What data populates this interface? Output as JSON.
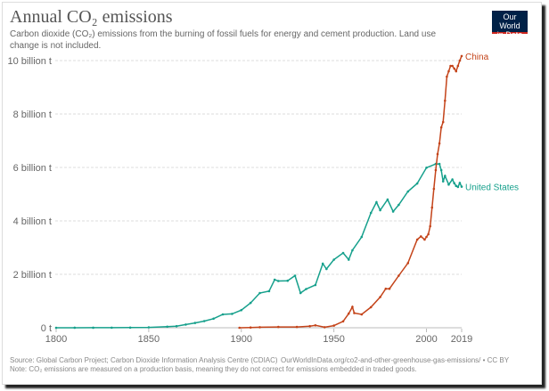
{
  "title": "Annual CO₂ emissions",
  "subtitle": "Carbon dioxide (CO₂) emissions from the burning of fossil fuels for energy and cement production. Land use change is not included.",
  "logo": {
    "line1": "Our World",
    "line2": "in Data"
  },
  "footer": {
    "source": "Source: Global Carbon Project; Carbon Dioxide Information Analysis Centre (CDIAC)",
    "url": "OurWorldInData.org/co2-and-other-greenhouse-gas-emissions/ • CC BY",
    "note": "Note: CO₂ emissions are measured on a production basis, meaning they do not correct for emissions embedded in traded goods."
  },
  "chart_data": {
    "type": "line",
    "xlim": [
      1800,
      2019
    ],
    "ylim": [
      0,
      10
    ],
    "x_ticks": [
      "1800",
      "1850",
      "1900",
      "1950",
      "2000",
      "2019"
    ],
    "y_ticks": [
      "0 t",
      "2 billion t",
      "4 billion t",
      "6 billion t",
      "8 billion t",
      "10 billion t"
    ],
    "y_tick_values": [
      0,
      2,
      4,
      6,
      8,
      10
    ],
    "x_tick_values": [
      1800,
      1850,
      1900,
      1950,
      2000,
      2019
    ],
    "grid": "horizontal dashed",
    "unit": "billion t",
    "series": [
      {
        "name": "United States",
        "color": "#16a08c",
        "x": [
          1800,
          1810,
          1820,
          1830,
          1840,
          1850,
          1860,
          1865,
          1870,
          1875,
          1880,
          1885,
          1890,
          1895,
          1900,
          1905,
          1910,
          1915,
          1918,
          1920,
          1925,
          1929,
          1932,
          1935,
          1940,
          1944,
          1946,
          1950,
          1955,
          1958,
          1960,
          1965,
          1970,
          1973,
          1975,
          1979,
          1982,
          1985,
          1990,
          1995,
          2000,
          2005,
          2007,
          2008,
          2009,
          2010,
          2012,
          2014,
          2015,
          2016,
          2017,
          2018,
          2019
        ],
        "y": [
          0.0003,
          0.001,
          0.002,
          0.004,
          0.006,
          0.015,
          0.04,
          0.06,
          0.12,
          0.18,
          0.25,
          0.34,
          0.5,
          0.52,
          0.66,
          0.93,
          1.3,
          1.37,
          1.8,
          1.75,
          1.76,
          1.95,
          1.3,
          1.45,
          1.6,
          2.4,
          2.2,
          2.55,
          2.8,
          2.55,
          2.9,
          3.4,
          4.3,
          4.7,
          4.4,
          4.8,
          4.35,
          4.6,
          5.1,
          5.4,
          5.99,
          6.13,
          6.13,
          5.9,
          5.48,
          5.68,
          5.36,
          5.55,
          5.41,
          5.31,
          5.27,
          5.42,
          5.28
        ]
      },
      {
        "name": "China",
        "color": "#c4441a",
        "x": [
          1899,
          1905,
          1910,
          1920,
          1930,
          1937,
          1940,
          1945,
          1950,
          1955,
          1958,
          1960,
          1961,
          1965,
          1970,
          1975,
          1978,
          1980,
          1985,
          1990,
          1995,
          1997,
          1999,
          2000,
          2001,
          2002,
          2003,
          2004,
          2005,
          2006,
          2007,
          2008,
          2009,
          2010,
          2011,
          2012,
          2013,
          2014,
          2015,
          2016,
          2017,
          2018,
          2019
        ],
        "y": [
          0.0001,
          0.01,
          0.02,
          0.03,
          0.03,
          0.06,
          0.09,
          0.02,
          0.08,
          0.24,
          0.53,
          0.78,
          0.55,
          0.5,
          0.77,
          1.15,
          1.46,
          1.46,
          1.95,
          2.42,
          3.3,
          3.42,
          3.3,
          3.4,
          3.5,
          3.8,
          4.5,
          5.2,
          5.9,
          6.5,
          6.9,
          7.5,
          7.7,
          8.5,
          9.4,
          9.6,
          9.8,
          9.8,
          9.7,
          9.6,
          9.8,
          10.0,
          10.17
        ]
      }
    ]
  }
}
